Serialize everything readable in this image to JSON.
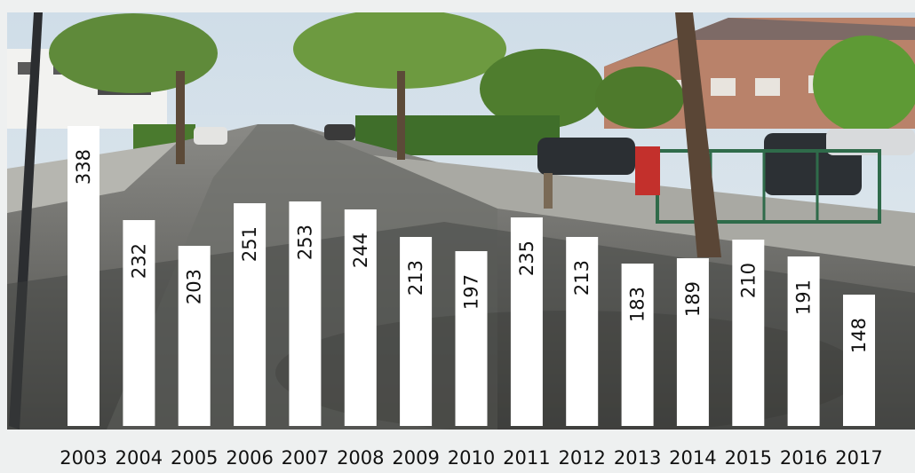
{
  "chart_data": {
    "type": "bar",
    "categories": [
      "2003",
      "2004",
      "2005",
      "2006",
      "2007",
      "2008",
      "2009",
      "2010",
      "2011",
      "2012",
      "2013",
      "2014",
      "2015",
      "2016",
      "2017"
    ],
    "values": [
      338,
      232,
      203,
      251,
      253,
      244,
      213,
      197,
      235,
      213,
      183,
      189,
      210,
      191,
      148
    ],
    "title": "",
    "xlabel": "",
    "ylabel": "",
    "ylim": [
      0,
      370
    ],
    "grid": false,
    "legend": "none",
    "bar_color": "#ffffff",
    "data_labels": "rotated, inside bar top",
    "background": "street photograph"
  }
}
